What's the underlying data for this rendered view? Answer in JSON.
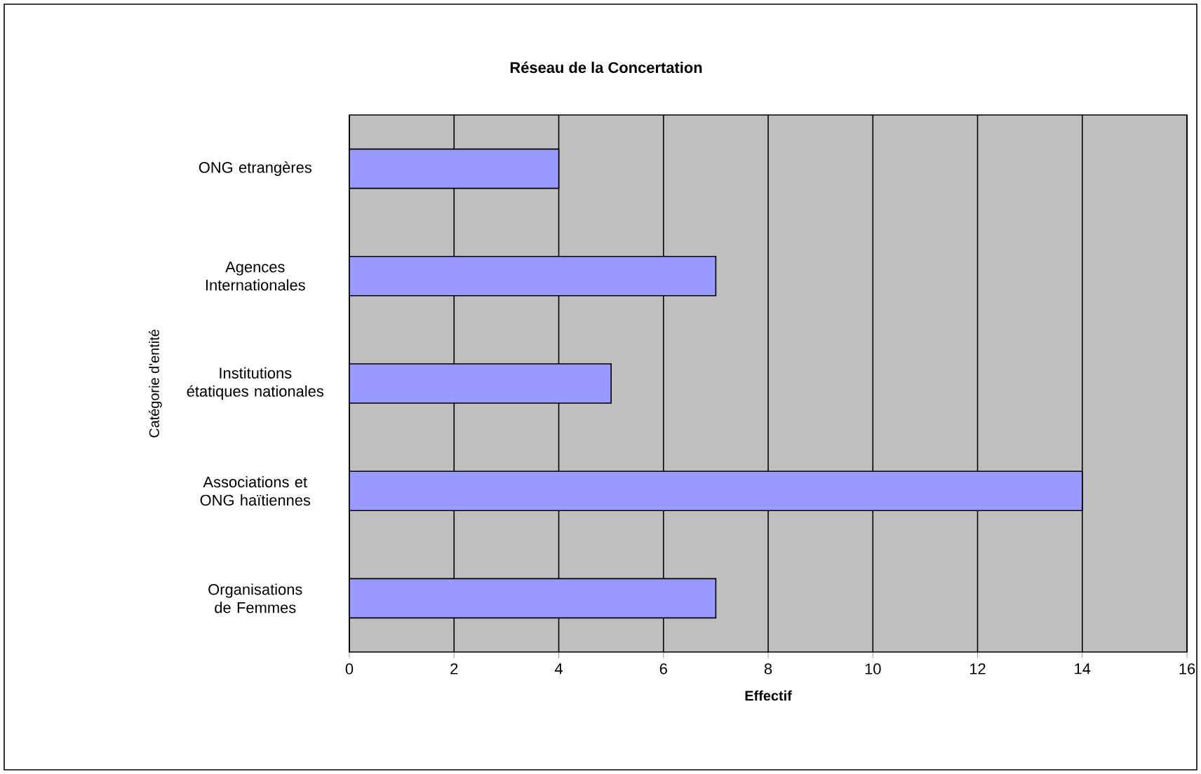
{
  "chart_data": {
    "type": "bar",
    "orientation": "horizontal",
    "title": "Réseau de la Concertation",
    "xlabel": "Effectif",
    "ylabel": "Catégorie d'entité",
    "categories": [
      "ONG etrangères",
      "Agences Internationales",
      "Institutions étatiques nationales",
      "Associations et ONG haïtiennes",
      "Organisations de Femmes"
    ],
    "values": [
      4,
      7,
      5,
      14,
      7
    ],
    "color": "#9999ff",
    "xlim": [
      0,
      16
    ],
    "xticks": [
      0,
      2,
      4,
      6,
      8,
      10,
      12,
      14,
      16
    ],
    "grid": "x"
  }
}
